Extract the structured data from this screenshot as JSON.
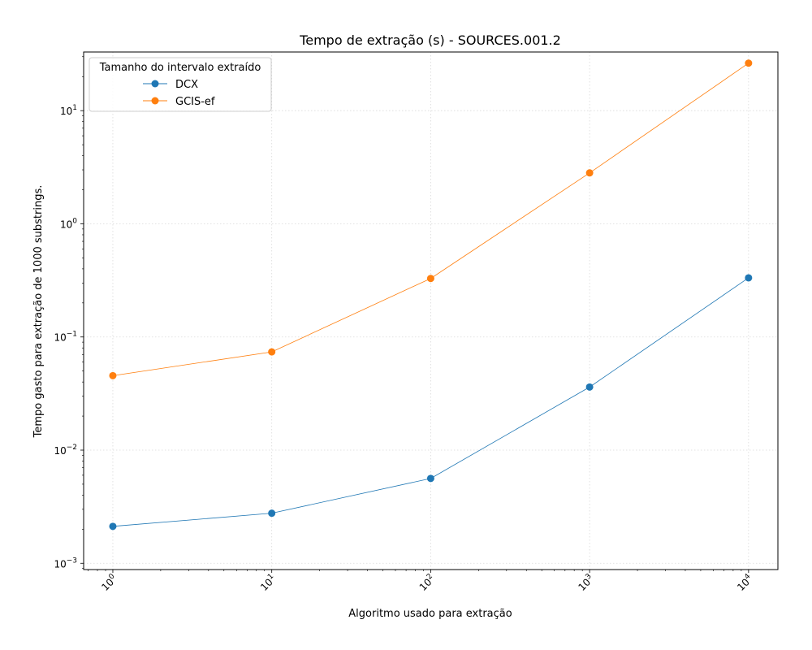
{
  "chart_data": {
    "type": "line",
    "title": "Tempo de extração (s) - SOURCES.001.2",
    "xlabel": "Algoritmo usado para extração",
    "ylabel": "Tempo gasto para extração de 1000 substrings.",
    "x_scale": "log",
    "y_scale": "log",
    "x": [
      1,
      10,
      100,
      1000,
      10000
    ],
    "x_tick_labels": [
      {
        "base": "10",
        "exp": "0"
      },
      {
        "base": "10",
        "exp": "1"
      },
      {
        "base": "10",
        "exp": "2"
      },
      {
        "base": "10",
        "exp": "3"
      },
      {
        "base": "10",
        "exp": "4"
      }
    ],
    "y_tick_labels": [
      {
        "base": "10",
        "exp": "−3",
        "value": 0.001
      },
      {
        "base": "10",
        "exp": "−2",
        "value": 0.01
      },
      {
        "base": "10",
        "exp": "−1",
        "value": 0.1
      },
      {
        "base": "10",
        "exp": "0",
        "value": 1
      },
      {
        "base": "10",
        "exp": "1",
        "value": 10
      }
    ],
    "xlim": [
      0.655,
      15300
    ],
    "ylim": [
      0.00088,
      33
    ],
    "grid": true,
    "legend": {
      "title": "Tamanho do intervalo extraído",
      "position": "top-left"
    },
    "series": [
      {
        "name": "DCX",
        "color": "#1f77b4",
        "values": [
          0.00212,
          0.00277,
          0.00562,
          0.0361,
          0.333
        ]
      },
      {
        "name": "GCIS-ef",
        "color": "#ff7f0e",
        "values": [
          0.0455,
          0.0738,
          0.329,
          2.82,
          26.3
        ]
      }
    ]
  }
}
